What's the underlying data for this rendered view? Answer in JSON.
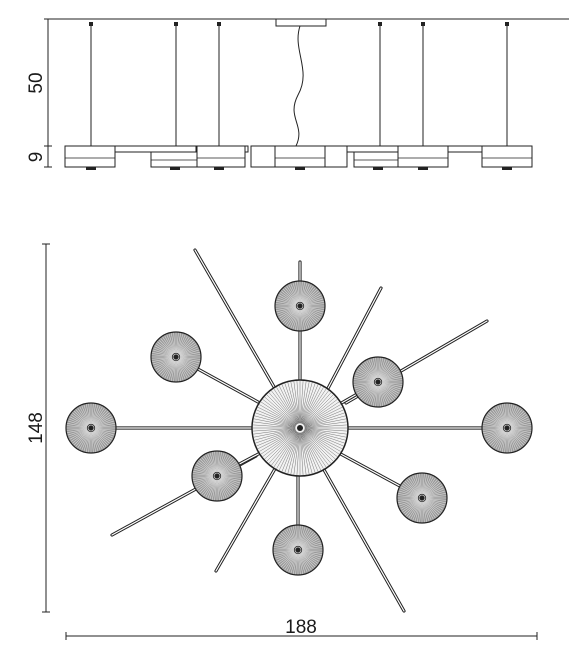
{
  "dimensions": {
    "drop_height": "50",
    "shade_height": "9",
    "overall_depth": "148",
    "overall_width": "188"
  },
  "colors": {
    "stroke": "#222222",
    "shade_fill": "#9a9a9a",
    "shade_rib": "#d8d8d8",
    "background": "#ffffff"
  }
}
